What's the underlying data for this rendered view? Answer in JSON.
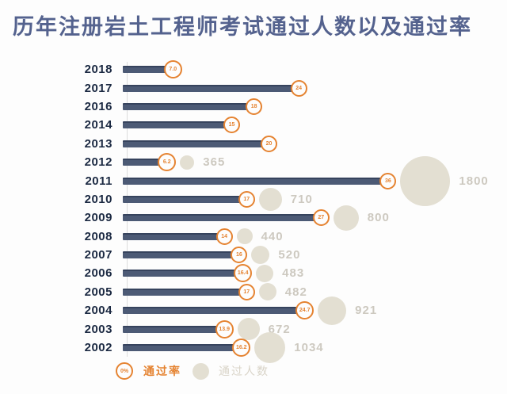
{
  "title": "历年注册岩土工程师考试通过人数以及通过率",
  "legend": {
    "rate_marker": "0%",
    "rate_label": "通过率",
    "count_label": "通过人数"
  },
  "colors": {
    "bar": "#4c5a75",
    "bar_edge": "#36435d",
    "accent_orange": "#e58331",
    "bubble_beige": "#e3dfd2",
    "count_text": "#cdc9c0",
    "year_text": "#1b2942",
    "title_text": "#54628e"
  },
  "chart_data": {
    "type": "bar",
    "orientation": "horizontal",
    "title": "历年注册岩土工程师考试通过人数以及通过率",
    "categories": [
      "2018",
      "2017",
      "2016",
      "2014",
      "2013",
      "2012",
      "2011",
      "2010",
      "2009",
      "2008",
      "2007",
      "2006",
      "2005",
      "2004",
      "2003",
      "2002"
    ],
    "series": [
      {
        "name": "通过率",
        "unit": "%",
        "values": [
          7.0,
          24,
          18,
          15,
          20,
          6.2,
          36,
          17,
          27,
          14,
          16,
          16.4,
          17,
          24.7,
          13.9,
          16.2
        ],
        "labels": [
          "7.0",
          "24",
          "18",
          "15",
          "20",
          "6.2",
          "36",
          "17",
          "27",
          "14",
          "16",
          "16.4",
          "17",
          "24.7",
          "13.9",
          "16.2"
        ]
      },
      {
        "name": "通过人数",
        "values": [
          null,
          null,
          null,
          null,
          null,
          365,
          1800,
          710,
          800,
          440,
          520,
          483,
          482,
          921,
          672,
          1034
        ]
      }
    ],
    "xlim": [
      0,
      40
    ],
    "legend_position": "bottom",
    "grid": false
  }
}
